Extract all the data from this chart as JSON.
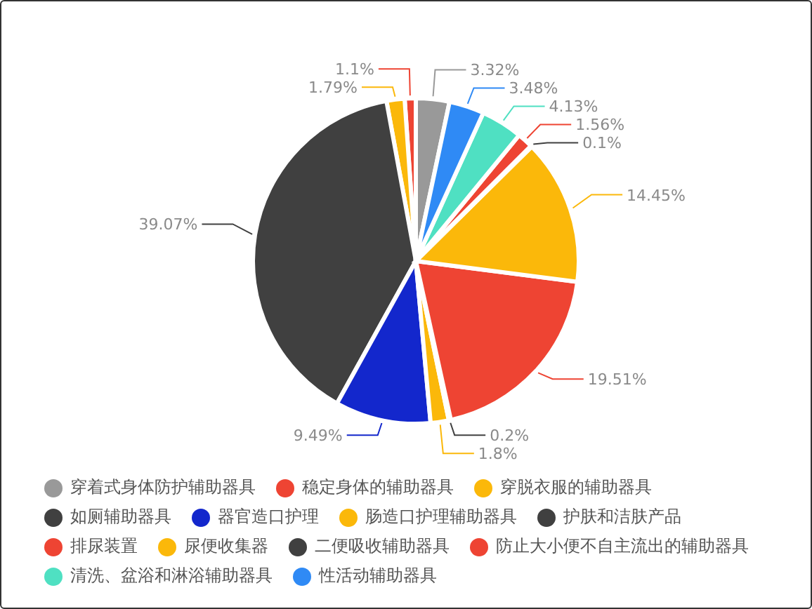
{
  "chart_data": {
    "type": "pie",
    "categories": [
      "穿着式身体防护辅助器具",
      "稳定身体的辅助器具",
      "穿脱衣服的辅助器具",
      "如厕辅助器具",
      "器官造口护理",
      "肠造口护理辅助器具",
      "护肤和洁肤产品",
      "排尿装置",
      "尿便收集器",
      "二便吸收辅助器具",
      "防止大小便不自主流出的辅助器具",
      "清洗、盆浴和淋浴辅助器具",
      "性活动辅助器具"
    ],
    "values": [
      3.32,
      1.1,
      1.79,
      39.07,
      9.49,
      1.8,
      0.2,
      19.51,
      14.45,
      0.1,
      1.56,
      4.13,
      3.48
    ],
    "colors": [
      "#999999",
      "#ee4433",
      "#fbb80a",
      "#404040",
      "#1327cc",
      "#fbb80a",
      "#404040",
      "#ee4433",
      "#fbb80a",
      "#404040",
      "#ee4433",
      "#4fe0c2",
      "#2f8af5"
    ],
    "value_labels": [
      "3.32%",
      "1.1%",
      "1.79%",
      "39.07%",
      "9.49%",
      "1.8%",
      "0.2%",
      "19.51%",
      "14.45%",
      "0.1%",
      "1.56%",
      "4.13%",
      "3.48%"
    ],
    "legend": "bottom"
  }
}
